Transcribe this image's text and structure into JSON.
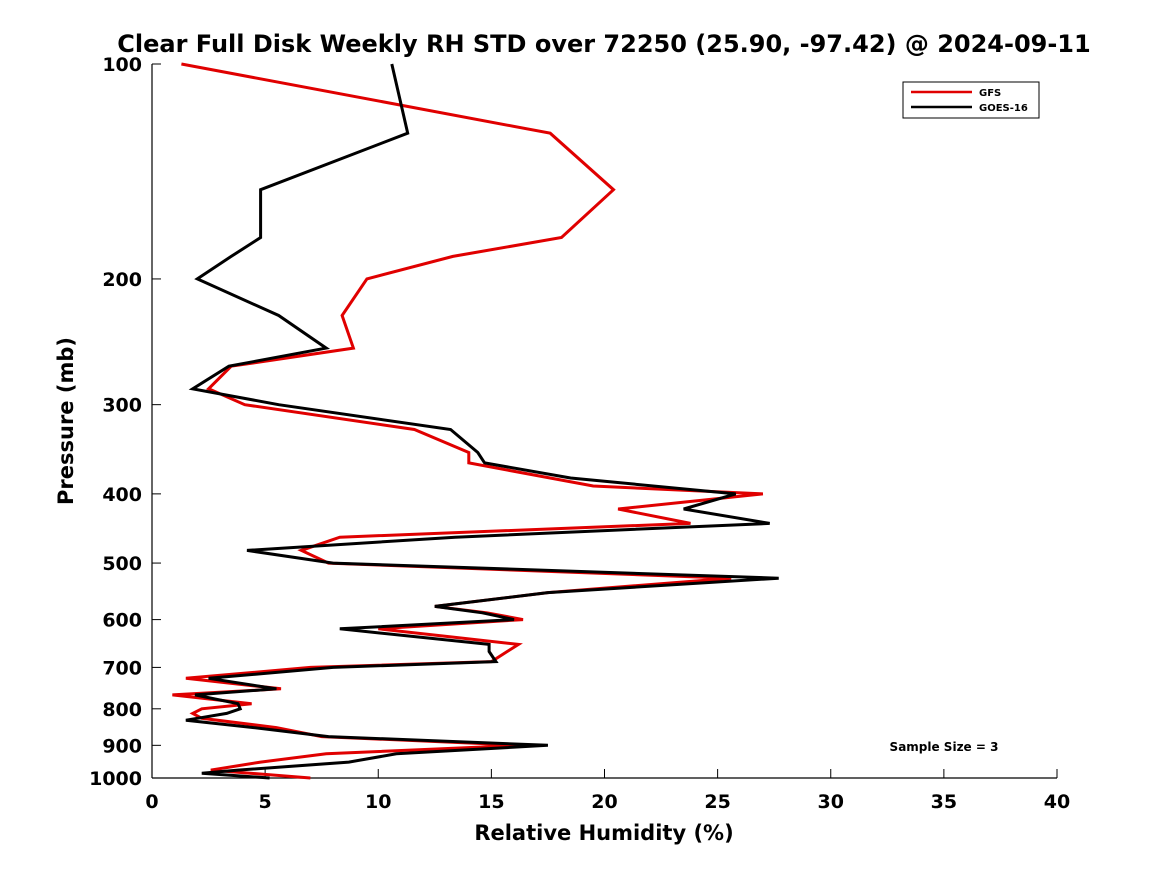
{
  "chart_data": {
    "type": "line",
    "title": "Clear Full Disk Weekly RH STD over 72250 (25.90, -97.42) @ 2024-09-11",
    "xlabel": "Relative Humidity (%)",
    "ylabel": "Pressure (mb)",
    "xlim": [
      0,
      40
    ],
    "ylim": [
      100,
      1000
    ],
    "yscale": "log",
    "reversed_y": true,
    "grid": false,
    "xticks": [
      0,
      5,
      10,
      15,
      20,
      25,
      30,
      35,
      40
    ],
    "xtick_labels": [
      "0",
      "5",
      "10",
      "15",
      "20",
      "25",
      "30",
      "35",
      "40"
    ],
    "yticks": [
      100,
      200,
      300,
      400,
      500,
      600,
      700,
      800,
      900,
      1000
    ],
    "ytick_labels": [
      "100",
      "200",
      "300",
      "400",
      "500",
      "600",
      "700",
      "800",
      "900",
      "1000"
    ],
    "legend_position": "top-right",
    "annotation": "Sample Size = 3",
    "series": [
      {
        "name": "GFS",
        "color": "#e00000",
        "points": [
          [
            1.3,
            100
          ],
          [
            17.6,
            125
          ],
          [
            20.4,
            150
          ],
          [
            18.1,
            175
          ],
          [
            13.3,
            186
          ],
          [
            9.5,
            200
          ],
          [
            8.4,
            225
          ],
          [
            8.9,
            250
          ],
          [
            3.5,
            265
          ],
          [
            2.5,
            285
          ],
          [
            4.1,
            300
          ],
          [
            11.6,
            325
          ],
          [
            14.0,
            350
          ],
          [
            14.0,
            362
          ],
          [
            19.5,
            390
          ],
          [
            27.0,
            400
          ],
          [
            20.6,
            420
          ],
          [
            23.8,
            440
          ],
          [
            8.3,
            460
          ],
          [
            6.6,
            480
          ],
          [
            7.8,
            500
          ],
          [
            25.6,
            525
          ],
          [
            17.5,
            550
          ],
          [
            12.5,
            575
          ],
          [
            14.8,
            587
          ],
          [
            16.4,
            600
          ],
          [
            10.0,
            618
          ],
          [
            16.2,
            650
          ],
          [
            15.7,
            665
          ],
          [
            15.0,
            687
          ],
          [
            7.0,
            700
          ],
          [
            1.5,
            725
          ],
          [
            5.7,
            750
          ],
          [
            0.9,
            765
          ],
          [
            4.4,
            787
          ],
          [
            2.2,
            800
          ],
          [
            1.8,
            812
          ],
          [
            2.2,
            825
          ],
          [
            5.5,
            850
          ],
          [
            7.5,
            875
          ],
          [
            16.4,
            900
          ],
          [
            7.7,
            925
          ],
          [
            4.8,
            950
          ],
          [
            2.6,
            975
          ],
          [
            7.0,
            1000
          ]
        ]
      },
      {
        "name": "GOES-16",
        "color": "#000000",
        "points": [
          [
            10.6,
            100
          ],
          [
            11.3,
            125
          ],
          [
            4.8,
            150
          ],
          [
            4.8,
            175
          ],
          [
            3.5,
            186
          ],
          [
            2.0,
            200
          ],
          [
            5.6,
            225
          ],
          [
            7.7,
            250
          ],
          [
            3.4,
            265
          ],
          [
            1.8,
            285
          ],
          [
            5.6,
            300
          ],
          [
            13.2,
            325
          ],
          [
            14.4,
            350
          ],
          [
            14.7,
            362
          ],
          [
            18.5,
            380
          ],
          [
            25.8,
            400
          ],
          [
            23.5,
            420
          ],
          [
            27.3,
            440
          ],
          [
            13.4,
            460
          ],
          [
            4.2,
            480
          ],
          [
            8.0,
            500
          ],
          [
            27.7,
            525
          ],
          [
            17.5,
            550
          ],
          [
            12.5,
            575
          ],
          [
            14.6,
            587
          ],
          [
            16.0,
            600
          ],
          [
            8.3,
            618
          ],
          [
            14.9,
            650
          ],
          [
            14.9,
            665
          ],
          [
            15.2,
            687
          ],
          [
            8.0,
            700
          ],
          [
            2.5,
            725
          ],
          [
            5.5,
            750
          ],
          [
            1.9,
            765
          ],
          [
            3.8,
            787
          ],
          [
            3.9,
            800
          ],
          [
            3.3,
            812
          ],
          [
            2.0,
            825
          ],
          [
            1.5,
            830
          ],
          [
            4.5,
            850
          ],
          [
            7.8,
            875
          ],
          [
            17.5,
            900
          ],
          [
            10.8,
            925
          ],
          [
            8.7,
            950
          ],
          [
            3.8,
            975
          ],
          [
            2.2,
            985
          ],
          [
            5.2,
            1000
          ]
        ]
      }
    ]
  }
}
